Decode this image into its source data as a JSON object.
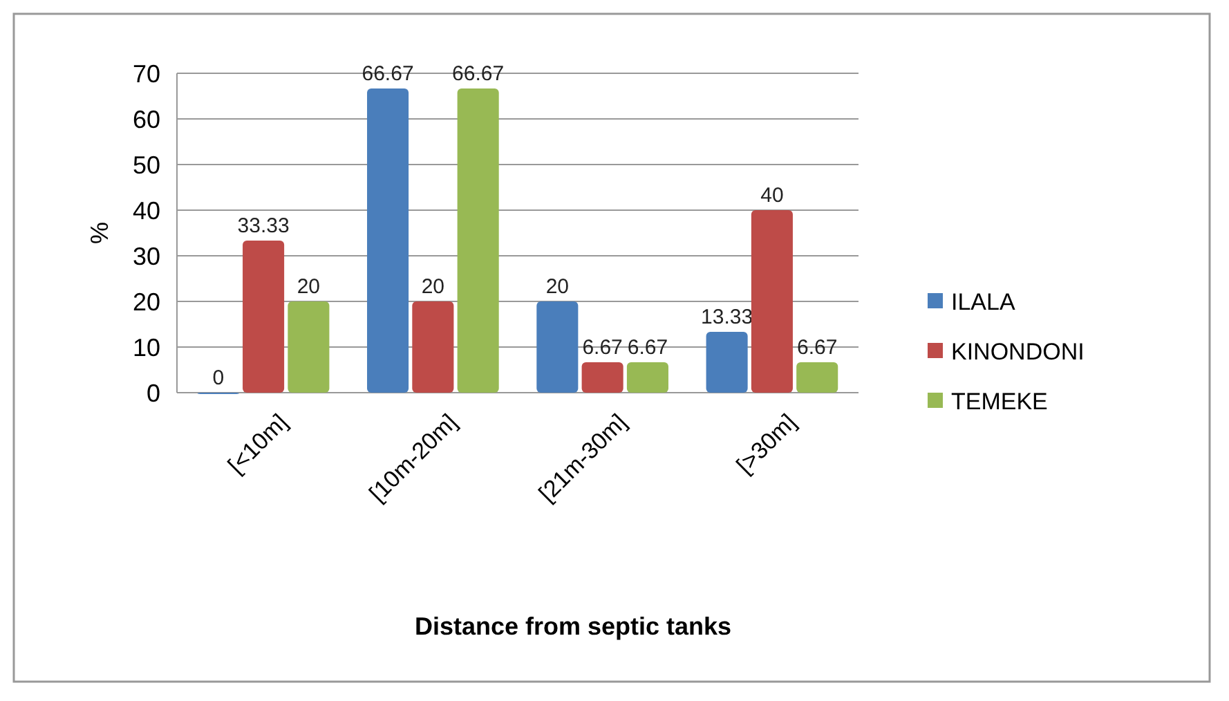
{
  "chart_data": {
    "type": "bar",
    "xlabel": "Distance from septic tanks",
    "ylabel": "%",
    "categories": [
      "[<10m]",
      "[10m-20m]",
      "[21m-30m]",
      "[>30m]"
    ],
    "series": [
      {
        "name": "ILALA",
        "color": "#4a7ebb",
        "values": [
          0,
          66.67,
          20,
          13.33
        ]
      },
      {
        "name": "KINONDONI",
        "color": "#be4b48",
        "values": [
          33.33,
          20,
          6.67,
          40
        ]
      },
      {
        "name": "TEMEKE",
        "color": "#98b954",
        "values": [
          20,
          66.67,
          6.67,
          6.67
        ]
      }
    ],
    "ylim": [
      0,
      70
    ],
    "yticks": [
      0,
      10,
      20,
      30,
      40,
      50,
      60,
      70
    ],
    "grid": "y",
    "legend": "right",
    "data_labels": true
  }
}
